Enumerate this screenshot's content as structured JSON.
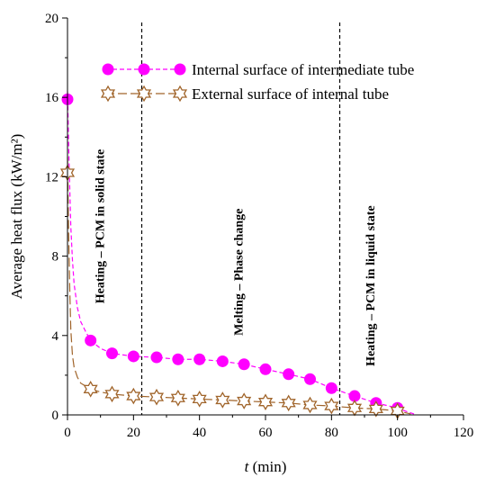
{
  "chart_data": {
    "type": "scatter",
    "xlabel_italic": "t",
    "xlabel_rest": " (min)",
    "ylabel": "Average heat flux (kW/m²)",
    "xlim": [
      0,
      120
    ],
    "ylim": [
      0,
      20
    ],
    "xticks": [
      0,
      20,
      40,
      60,
      80,
      100,
      120
    ],
    "yticks": [
      0,
      4,
      8,
      12,
      16,
      20
    ],
    "grid": false,
    "legend_position": "top-right",
    "phase_boundaries": [
      22.5,
      82.5
    ],
    "annotations": [
      {
        "text": "Heating – PCM in solid state",
        "x": 11
      },
      {
        "text": "Melting – Phase change",
        "x": 53
      },
      {
        "text": "Heating – PCM in liquid state",
        "x": 93
      }
    ],
    "series": [
      {
        "name": "Internal surface of intermediate tube",
        "color": "#ff00ff",
        "marker": "filled-circle",
        "x": [
          0,
          7,
          13.5,
          20,
          27,
          33.5,
          40,
          47,
          53.5,
          60,
          67,
          73.5,
          80,
          87,
          93.5,
          100
        ],
        "y": [
          15.9,
          3.75,
          3.1,
          2.95,
          2.9,
          2.8,
          2.8,
          2.7,
          2.55,
          2.3,
          2.05,
          1.8,
          1.35,
          0.95,
          0.6,
          0.35
        ],
        "curve_x": [
          0,
          0.5,
          1,
          1.5,
          2,
          3,
          4,
          5.5,
          7,
          10,
          13.5,
          20,
          27,
          33.5,
          40,
          47,
          53.5,
          60,
          67,
          73.5,
          80,
          87,
          93.5,
          100,
          103,
          105
        ],
        "curve_y": [
          16.3,
          12.5,
          9.5,
          7.8,
          6.6,
          5.4,
          4.7,
          4.2,
          3.75,
          3.35,
          3.1,
          2.95,
          2.9,
          2.8,
          2.8,
          2.7,
          2.55,
          2.3,
          2.05,
          1.8,
          1.35,
          0.95,
          0.6,
          0.35,
          0.15,
          0.05
        ]
      },
      {
        "name": "External surface of internal tube",
        "color": "#a0642a",
        "marker": "open-star",
        "x": [
          0,
          7,
          13.5,
          20,
          27,
          33.5,
          40,
          47,
          53.5,
          60,
          67,
          73.5,
          80,
          87,
          93.5,
          100
        ],
        "y": [
          12.2,
          1.3,
          1.05,
          0.95,
          0.9,
          0.85,
          0.8,
          0.75,
          0.7,
          0.65,
          0.6,
          0.5,
          0.45,
          0.35,
          0.3,
          0.2
        ],
        "curve_x": [
          0,
          0.3,
          0.7,
          1,
          1.5,
          2,
          3,
          4,
          5.5,
          7,
          10,
          13.5,
          20,
          27,
          33.5,
          40,
          47,
          53.5,
          60,
          67,
          73.5,
          80,
          87,
          93.5,
          100,
          104
        ],
        "curve_y": [
          13.0,
          9.5,
          6.2,
          4.3,
          3.0,
          2.4,
          1.9,
          1.6,
          1.45,
          1.3,
          1.15,
          1.05,
          0.95,
          0.9,
          0.85,
          0.8,
          0.75,
          0.7,
          0.65,
          0.6,
          0.5,
          0.45,
          0.35,
          0.3,
          0.2,
          0.05
        ]
      }
    ]
  }
}
